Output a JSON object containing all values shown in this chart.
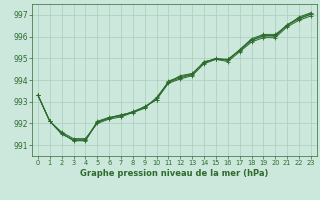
{
  "bg_color": "#cce8dc",
  "grid_color": "#aaccbb",
  "line_color": "#2d6b2d",
  "title": "Graphe pression niveau de la mer (hPa)",
  "ylim": [
    990.5,
    997.5
  ],
  "yticks": [
    991,
    992,
    993,
    994,
    995,
    996,
    997
  ],
  "xlim": [
    -0.5,
    23.5
  ],
  "xticks": [
    0,
    1,
    2,
    3,
    4,
    5,
    6,
    7,
    8,
    9,
    10,
    11,
    12,
    13,
    14,
    15,
    16,
    17,
    18,
    19,
    20,
    21,
    22,
    23
  ],
  "lines": [
    [
      993.3,
      992.1,
      991.55,
      991.2,
      991.2,
      992.05,
      992.25,
      992.4,
      992.5,
      992.75,
      993.1,
      993.85,
      994.05,
      994.2,
      994.75,
      994.95,
      994.85,
      995.3,
      995.75,
      995.95,
      995.95,
      996.45,
      996.75,
      996.95
    ],
    [
      993.3,
      992.1,
      991.6,
      991.3,
      991.3,
      992.0,
      992.2,
      992.3,
      992.5,
      992.7,
      993.2,
      993.9,
      994.2,
      994.3,
      994.8,
      995.0,
      994.9,
      995.4,
      995.9,
      996.1,
      996.1,
      996.5,
      996.9,
      997.1
    ],
    [
      993.3,
      992.1,
      991.5,
      991.25,
      991.25,
      992.05,
      992.25,
      992.35,
      992.55,
      992.75,
      993.15,
      993.9,
      994.1,
      994.25,
      994.85,
      994.95,
      994.95,
      995.35,
      995.85,
      996.05,
      996.05,
      996.55,
      996.85,
      997.05
    ],
    [
      993.3,
      992.1,
      991.55,
      991.22,
      991.22,
      992.1,
      992.28,
      992.38,
      992.52,
      992.78,
      993.1,
      993.95,
      994.15,
      994.28,
      994.82,
      994.98,
      994.95,
      995.38,
      995.82,
      996.02,
      996.02,
      996.52,
      996.82,
      997.02
    ]
  ]
}
